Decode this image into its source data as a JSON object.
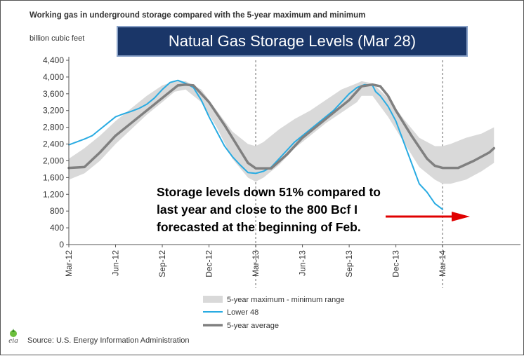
{
  "header": {
    "chart_title": "Working gas in underground storage compared with the 5-year maximum and minimum",
    "unit_label": "billion cubic feet",
    "banner": "Natual Gas Storage Levels (Mar 28)"
  },
  "annotation": {
    "lines": [
      "Storage levels down 51% compared to",
      "last year and close to the 800 Bcf I",
      "forecasted at the beginning of Feb."
    ]
  },
  "legend": {
    "range": "5-year maximum - minimum range",
    "lower48": "Lower 48",
    "average": "5-year average"
  },
  "source": {
    "logo_text": "eia",
    "text": "Source:  U.S. Energy Information Administration"
  },
  "colors": {
    "range_fill": "#d9d9d9",
    "lower48": "#29abe2",
    "average": "#808080",
    "arrow": "#e00000",
    "banner_bg": "#1a3668"
  },
  "chart_data": {
    "type": "line",
    "title": "Working gas in underground storage compared with the 5-year maximum and minimum",
    "ylabel": "billion cubic feet",
    "ylim": [
      0,
      4400
    ],
    "xlim": [
      0,
      29
    ],
    "yticks": [
      0,
      400,
      800,
      1200,
      1600,
      2000,
      2400,
      2800,
      3200,
      3600,
      4000,
      4400
    ],
    "ytick_labels": [
      "0",
      "400",
      "800",
      "1,200",
      "1,600",
      "2,000",
      "2,400",
      "2,800",
      "3,200",
      "3,600",
      "4,000",
      "4,400"
    ],
    "xticks": [
      0,
      3,
      6,
      9,
      12,
      15,
      18,
      21,
      24
    ],
    "xtick_labels": [
      "Mar-12",
      "Jun-12",
      "Sep-12",
      "Dec-12",
      "Mar-13",
      "Jun-13",
      "Sep-13",
      "Dec-13",
      "Mar-14"
    ],
    "vlines": [
      12,
      24
    ],
    "grid": false,
    "legend_position": "bottom",
    "series": [
      {
        "name": "5-year maximum - minimum range",
        "kind": "band",
        "x": [
          0,
          1,
          2,
          3,
          4,
          5,
          6,
          6.8,
          7.5,
          8.5,
          9.5,
          10.5,
          11.5,
          12,
          12.5,
          13.5,
          14.5,
          15.5,
          16.5,
          17.5,
          18.5,
          18.8,
          19.5,
          20.5,
          21.5,
          22.5,
          23.5,
          24,
          24.5,
          25.5,
          26.5,
          27.3
        ],
        "upper": [
          2050,
          2300,
          2600,
          2950,
          3250,
          3550,
          3800,
          3900,
          3900,
          3700,
          3200,
          2700,
          2400,
          2350,
          2450,
          2750,
          3000,
          3200,
          3450,
          3700,
          3850,
          3900,
          3850,
          3500,
          3000,
          2550,
          2350,
          2350,
          2400,
          2550,
          2650,
          2800
        ],
        "lower": [
          1550,
          1700,
          2000,
          2400,
          2750,
          3100,
          3400,
          3650,
          3700,
          3400,
          2800,
          2050,
          1600,
          1500,
          1600,
          1900,
          2300,
          2600,
          2900,
          3150,
          3400,
          3550,
          3550,
          3050,
          2450,
          1850,
          1550,
          1450,
          1450,
          1550,
          1750,
          1950
        ]
      },
      {
        "name": "Lower 48",
        "kind": "line",
        "x": [
          0,
          0.5,
          1,
          1.5,
          2,
          2.5,
          3,
          3.5,
          4,
          4.5,
          5,
          5.5,
          6,
          6.5,
          7,
          7.5,
          8,
          8.5,
          9,
          9.5,
          10,
          10.5,
          11,
          11.5,
          12,
          12.5,
          13,
          13.5,
          14,
          14.5,
          15,
          15.5,
          16,
          16.5,
          17,
          17.5,
          18,
          18.5,
          19,
          19.5,
          19.7,
          20,
          20.5,
          21,
          21.5,
          22,
          22.5,
          23,
          23.5,
          24
        ],
        "y": [
          2380,
          2450,
          2520,
          2600,
          2750,
          2900,
          3050,
          3120,
          3180,
          3250,
          3350,
          3500,
          3700,
          3870,
          3920,
          3850,
          3750,
          3450,
          3050,
          2700,
          2350,
          2100,
          1900,
          1720,
          1700,
          1750,
          1850,
          2050,
          2250,
          2450,
          2600,
          2750,
          2900,
          3050,
          3200,
          3400,
          3600,
          3750,
          3820,
          3800,
          3650,
          3550,
          3300,
          2950,
          2450,
          1950,
          1450,
          1250,
          980,
          840
        ]
      },
      {
        "name": "5-year average",
        "kind": "line",
        "x": [
          0,
          1,
          2,
          3,
          4,
          5,
          6,
          7,
          7.5,
          8,
          8.5,
          9,
          10,
          11,
          11.5,
          12,
          13,
          14,
          15,
          16,
          17,
          18,
          18.8,
          19.5,
          20,
          20.5,
          21,
          22,
          23,
          23.5,
          24,
          25,
          26,
          27,
          27.3
        ],
        "y": [
          1830,
          1850,
          2200,
          2600,
          2900,
          3200,
          3500,
          3800,
          3820,
          3800,
          3600,
          3400,
          2850,
          2250,
          1950,
          1820,
          1820,
          2150,
          2550,
          2850,
          3150,
          3450,
          3780,
          3820,
          3780,
          3550,
          3200,
          2600,
          2050,
          1880,
          1830,
          1830,
          2000,
          2200,
          2300
        ]
      }
    ]
  }
}
